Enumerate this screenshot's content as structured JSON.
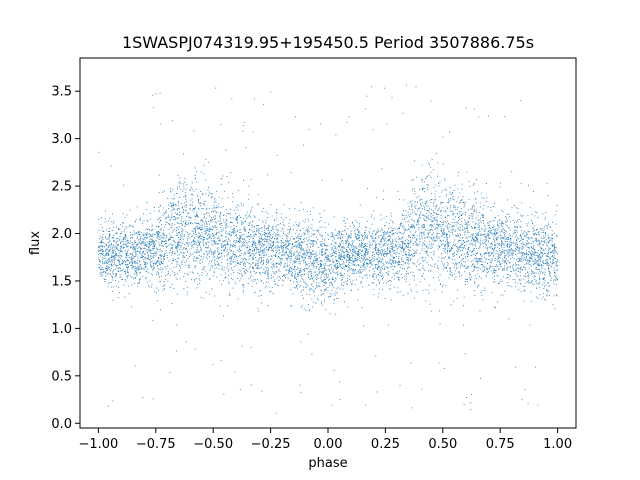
{
  "chart_data": {
    "type": "scatter",
    "title": "1SWASPJ074319.95+195450.5 Period 3507886.75s",
    "xlabel": "phase",
    "ylabel": "flux",
    "xlim": [
      -1.08,
      1.08
    ],
    "ylim": [
      -0.05,
      3.85
    ],
    "x_ticks": [
      -1.0,
      -0.75,
      -0.5,
      -0.25,
      0.0,
      0.25,
      0.5,
      0.75,
      1.0
    ],
    "x_tick_labels": [
      "−1.00",
      "−0.75",
      "−0.50",
      "−0.25",
      "0.00",
      "0.25",
      "0.50",
      "0.75",
      "1.00"
    ],
    "y_ticks": [
      0.0,
      0.5,
      1.0,
      1.5,
      2.0,
      2.5,
      3.0,
      3.5
    ],
    "y_tick_labels": [
      "0.0",
      "0.5",
      "1.0",
      "1.5",
      "2.0",
      "2.5",
      "3.0",
      "3.5"
    ],
    "grid": false,
    "marker_color": "#1f77b4",
    "series": [
      {
        "x": [
          -1.0,
          -0.95,
          -0.9,
          -0.85,
          -0.8,
          -0.75,
          -0.7,
          -0.65,
          -0.6,
          -0.55,
          -0.5,
          -0.45,
          -0.4,
          -0.35,
          -0.3,
          -0.25,
          -0.2,
          -0.15,
          -0.1,
          -0.05,
          0.0,
          0.05,
          0.1,
          0.15,
          0.2,
          0.25,
          0.3,
          0.35,
          0.4,
          0.45,
          0.5,
          0.55,
          0.6,
          0.65,
          0.7,
          0.75,
          0.8,
          0.85,
          0.9,
          0.95,
          1.0
        ],
        "y_center": [
          1.8,
          1.78,
          1.78,
          1.78,
          1.8,
          1.82,
          1.9,
          2.05,
          2.05,
          2.0,
          1.95,
          1.92,
          1.9,
          1.88,
          1.85,
          1.82,
          1.8,
          1.78,
          1.75,
          1.72,
          1.7,
          1.75,
          1.78,
          1.78,
          1.78,
          1.8,
          1.82,
          1.9,
          2.05,
          2.05,
          2.0,
          1.95,
          1.92,
          1.9,
          1.88,
          1.85,
          1.82,
          1.8,
          1.78,
          1.75,
          1.72
        ],
        "y_spread": [
          0.25,
          0.25,
          0.25,
          0.25,
          0.28,
          0.3,
          0.35,
          0.45,
          0.45,
          0.42,
          0.4,
          0.38,
          0.36,
          0.35,
          0.33,
          0.32,
          0.3,
          0.3,
          0.3,
          0.32,
          0.33,
          0.28,
          0.25,
          0.25,
          0.25,
          0.28,
          0.3,
          0.35,
          0.45,
          0.45,
          0.42,
          0.4,
          0.38,
          0.36,
          0.35,
          0.33,
          0.32,
          0.3,
          0.3,
          0.32,
          0.33
        ]
      }
    ]
  }
}
